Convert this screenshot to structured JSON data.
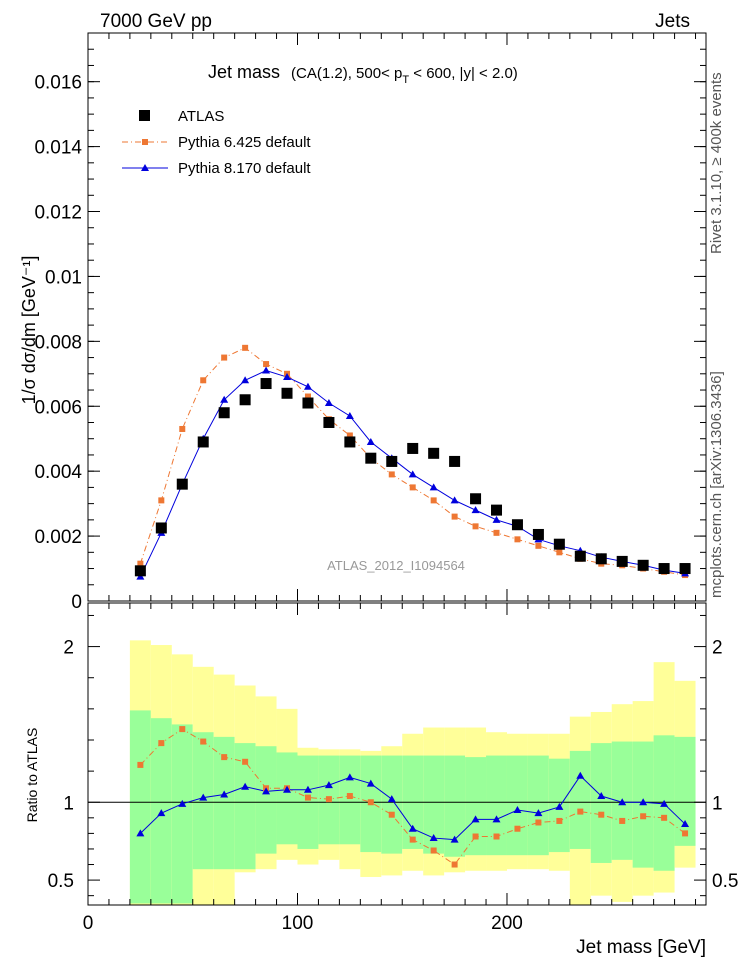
{
  "header": {
    "left": "7000 GeV pp",
    "right": "Jets"
  },
  "side_labels": {
    "rivet": "Rivet 3.1.10, ≥ 400k events",
    "mcplots": "mcplots.cern.ch [arXiv:1306.3436]"
  },
  "title": {
    "main": "Jet mass",
    "cond_a": "(CA(1.2), 500< p",
    "cond_sub": "T",
    "cond_b": " < 600, |y| < 2.0)"
  },
  "watermark": "ATLAS_2012_I1094564",
  "legend": {
    "atlas": "ATLAS",
    "py6": "Pythia 6.425 default",
    "py8": "Pythia 8.170 default"
  },
  "colors": {
    "atlas": "#000000",
    "pythia6": "#ee7733",
    "pythia8": "#0000dd",
    "band_inner": "#99ff99",
    "band_outer": "#ffff99"
  },
  "chart_data": [
    {
      "type": "scatter",
      "panel": "main",
      "ylabel": "1/σ dσ/dm [GeV⁻¹]",
      "xlim": [
        0,
        295
      ],
      "ylim": [
        0,
        0.0175
      ],
      "ytick_labels": [
        "0",
        "0.002",
        "0.004",
        "0.006",
        "0.008",
        "0.01",
        "0.012",
        "0.014",
        "0.016"
      ],
      "x": [
        25,
        35,
        45,
        55,
        65,
        75,
        85,
        95,
        105,
        115,
        125,
        135,
        145,
        155,
        165,
        175,
        185,
        195,
        205,
        215,
        225,
        235,
        245,
        255,
        265,
        275,
        285
      ],
      "series": [
        {
          "name": "ATLAS",
          "marker": "square",
          "values": [
            0.00093,
            0.00225,
            0.0036,
            0.0049,
            0.0058,
            0.0062,
            0.0067,
            0.0064,
            0.0061,
            0.0055,
            0.0049,
            0.0044,
            0.0043,
            0.0047,
            0.00455,
            0.0043,
            0.00315,
            0.0028,
            0.00235,
            0.00205,
            0.00175,
            0.00138,
            0.0013,
            0.00122,
            0.0011,
            0.001,
            0.001
          ]
        },
        {
          "name": "Pythia 6.425 default",
          "marker": "square-small",
          "values": [
            0.00115,
            0.0031,
            0.0053,
            0.0068,
            0.0075,
            0.0078,
            0.0073,
            0.007,
            0.0063,
            0.0056,
            0.0051,
            0.0044,
            0.0039,
            0.0035,
            0.0031,
            0.0026,
            0.0023,
            0.0021,
            0.0019,
            0.0017,
            0.0015,
            0.0013,
            0.00115,
            0.0011,
            0.001,
            0.0009,
            0.0008
          ]
        },
        {
          "name": "Pythia 8.170 default",
          "marker": "triangle",
          "values": [
            0.00075,
            0.0021,
            0.0036,
            0.005,
            0.0062,
            0.0068,
            0.0071,
            0.0069,
            0.0066,
            0.0061,
            0.0057,
            0.0049,
            0.0044,
            0.0039,
            0.0035,
            0.0031,
            0.0028,
            0.0025,
            0.0023,
            0.0019,
            0.0017,
            0.00155,
            0.00135,
            0.00122,
            0.0011,
            0.00095,
            0.00085
          ]
        }
      ]
    },
    {
      "type": "line",
      "panel": "ratio",
      "xlabel": "Jet mass [GeV]",
      "ylabel": "Ratio to ATLAS",
      "xlim": [
        0,
        295
      ],
      "ylim": [
        0.34,
        2.28
      ],
      "xtick_labels": [
        "0",
        "100",
        "200"
      ],
      "ytick_labels": [
        "0.5",
        "1",
        "2"
      ],
      "x": [
        25,
        35,
        45,
        55,
        65,
        75,
        85,
        95,
        105,
        115,
        125,
        135,
        145,
        155,
        165,
        175,
        185,
        195,
        205,
        215,
        225,
        235,
        245,
        255,
        265,
        275,
        285
      ],
      "bins": [
        20,
        30,
        40,
        50,
        60,
        70,
        80,
        90,
        100,
        110,
        120,
        130,
        140,
        150,
        160,
        170,
        180,
        190,
        200,
        210,
        220,
        230,
        240,
        250,
        260,
        270,
        280,
        290
      ],
      "band_inner": {
        "lo": [
          0.35,
          0.35,
          0.35,
          0.57,
          0.57,
          0.57,
          0.67,
          0.73,
          0.7,
          0.73,
          0.73,
          0.68,
          0.67,
          0.7,
          0.67,
          0.65,
          0.66,
          0.66,
          0.66,
          0.66,
          0.68,
          0.7,
          0.61,
          0.63,
          0.58,
          0.56,
          0.72
        ],
        "hi": [
          1.59,
          1.54,
          1.5,
          1.45,
          1.42,
          1.38,
          1.36,
          1.32,
          1.3,
          1.3,
          1.3,
          1.3,
          1.3,
          1.3,
          1.3,
          1.3,
          1.29,
          1.3,
          1.3,
          1.3,
          1.28,
          1.33,
          1.38,
          1.39,
          1.39,
          1.43,
          1.42
        ]
      },
      "band_outer": {
        "lo": [
          0.34,
          0.34,
          0.34,
          0.34,
          0.34,
          0.55,
          0.57,
          0.63,
          0.6,
          0.63,
          0.57,
          0.52,
          0.53,
          0.56,
          0.53,
          0.55,
          0.56,
          0.56,
          0.57,
          0.57,
          0.56,
          0.34,
          0.4,
          0.36,
          0.4,
          0.42,
          0.58
        ],
        "hi": [
          2.04,
          2.01,
          1.95,
          1.87,
          1.82,
          1.75,
          1.68,
          1.6,
          1.35,
          1.34,
          1.34,
          1.33,
          1.36,
          1.44,
          1.48,
          1.48,
          1.48,
          1.45,
          1.44,
          1.44,
          1.44,
          1.55,
          1.58,
          1.63,
          1.65,
          1.9,
          1.78
        ]
      },
      "series": [
        {
          "name": "Pythia 6.425 default",
          "values": [
            1.24,
            1.38,
            1.47,
            1.39,
            1.29,
            1.26,
            1.09,
            1.09,
            1.03,
            1.02,
            1.04,
            1.0,
            0.92,
            0.76,
            0.69,
            0.6,
            0.78,
            0.78,
            0.83,
            0.87,
            0.88,
            0.94,
            0.92,
            0.88,
            0.91,
            0.9,
            0.8
          ]
        },
        {
          "name": "Pythia 8.170 default",
          "values": [
            0.8,
            0.93,
            0.99,
            1.03,
            1.05,
            1.1,
            1.07,
            1.08,
            1.08,
            1.11,
            1.16,
            1.12,
            1.02,
            0.83,
            0.77,
            0.76,
            0.89,
            0.89,
            0.95,
            0.93,
            0.97,
            1.17,
            1.04,
            1.0,
            1.0,
            0.99,
            0.86
          ]
        }
      ]
    }
  ]
}
